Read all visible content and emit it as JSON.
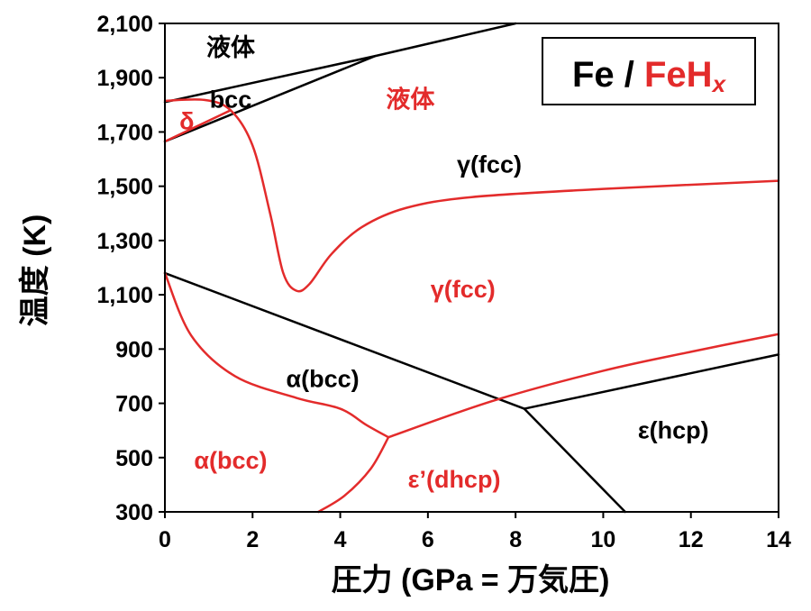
{
  "chart_data": {
    "type": "line",
    "title": "",
    "xlabel": "圧力 (GPa = 万気圧)",
    "ylabel": "温度 (K)",
    "xlim": [
      0,
      14
    ],
    "ylim": [
      300,
      2100
    ],
    "xticks": [
      0,
      2,
      4,
      6,
      8,
      10,
      12,
      14
    ],
    "xtick_labels": [
      "0",
      "2",
      "4",
      "6",
      "8",
      "10",
      "12",
      "14"
    ],
    "yticks": [
      300,
      500,
      700,
      900,
      1100,
      1300,
      1500,
      1700,
      1900,
      2100
    ],
    "ytick_labels": [
      "300",
      "500",
      "700",
      "900",
      "1,100",
      "1,300",
      "1,500",
      "1,700",
      "1,900",
      "2,100"
    ],
    "colors": {
      "Fe": "#000000",
      "FeHx": "#e32b2b"
    },
    "legend": {
      "prefix": "Fe / ",
      "main": "FeH",
      "subscript": "x",
      "position": "top-right"
    },
    "series": [
      {
        "group": "Fe",
        "points": [
          [
            0,
            1810
          ],
          [
            4.8,
            1980
          ],
          [
            8,
            2100
          ]
        ]
      },
      {
        "group": "Fe",
        "points": [
          [
            0,
            1665
          ],
          [
            4.8,
            1980
          ]
        ]
      },
      {
        "group": "Fe",
        "points": [
          [
            0,
            1180
          ],
          [
            8.2,
            680
          ],
          [
            14,
            880
          ]
        ]
      },
      {
        "group": "Fe",
        "points": [
          [
            8.2,
            680
          ],
          [
            10.5,
            300
          ]
        ]
      },
      {
        "group": "FeHx",
        "points": [
          [
            0,
            1815
          ],
          [
            0.9,
            1818
          ],
          [
            1.5,
            1780
          ],
          [
            2,
            1650
          ],
          [
            2.4,
            1400
          ],
          [
            2.7,
            1180
          ],
          [
            3,
            1115
          ],
          [
            3.3,
            1140
          ],
          [
            3.8,
            1250
          ],
          [
            4.5,
            1350
          ],
          [
            5.5,
            1420
          ],
          [
            7,
            1460
          ],
          [
            10,
            1490
          ],
          [
            14,
            1520
          ]
        ]
      },
      {
        "group": "FeHx",
        "points": [
          [
            0,
            1665
          ],
          [
            1.5,
            1780
          ]
        ]
      },
      {
        "group": "FeHx",
        "points": [
          [
            0,
            1180
          ],
          [
            0.6,
            950
          ],
          [
            1.6,
            800
          ],
          [
            3,
            720
          ],
          [
            4,
            680
          ],
          [
            4.6,
            620
          ],
          [
            5.1,
            575
          ]
        ]
      },
      {
        "group": "FeHx",
        "points": [
          [
            5.1,
            575
          ],
          [
            7.5,
            710
          ],
          [
            10,
            820
          ],
          [
            12,
            890
          ],
          [
            14,
            955
          ]
        ]
      },
      {
        "group": "FeHx",
        "points": [
          [
            3.5,
            300
          ],
          [
            4.1,
            360
          ],
          [
            4.7,
            460
          ],
          [
            5.1,
            575
          ]
        ]
      }
    ],
    "annotations": [
      {
        "text": "液体",
        "x": 1.5,
        "y": 2010,
        "group": "Fe"
      },
      {
        "text": "bcc",
        "x": 1.5,
        "y": 1820,
        "group": "Fe"
      },
      {
        "text": "δ",
        "x": 0.5,
        "y": 1740,
        "group": "FeHx"
      },
      {
        "text": "液体",
        "x": 5.6,
        "y": 1820,
        "group": "FeHx"
      },
      {
        "text": "γ(fcc)",
        "x": 7.4,
        "y": 1580,
        "group": "Fe"
      },
      {
        "text": "γ(fcc)",
        "x": 6.8,
        "y": 1120,
        "group": "FeHx"
      },
      {
        "text": "α(bcc)",
        "x": 3.6,
        "y": 790,
        "group": "Fe"
      },
      {
        "text": "α(bcc)",
        "x": 1.5,
        "y": 490,
        "group": "FeHx"
      },
      {
        "text": "ε(hcp)",
        "x": 11.6,
        "y": 600,
        "group": "Fe"
      },
      {
        "text": "ε’(dhcp)",
        "x": 6.6,
        "y": 420,
        "group": "FeHx"
      }
    ]
  }
}
